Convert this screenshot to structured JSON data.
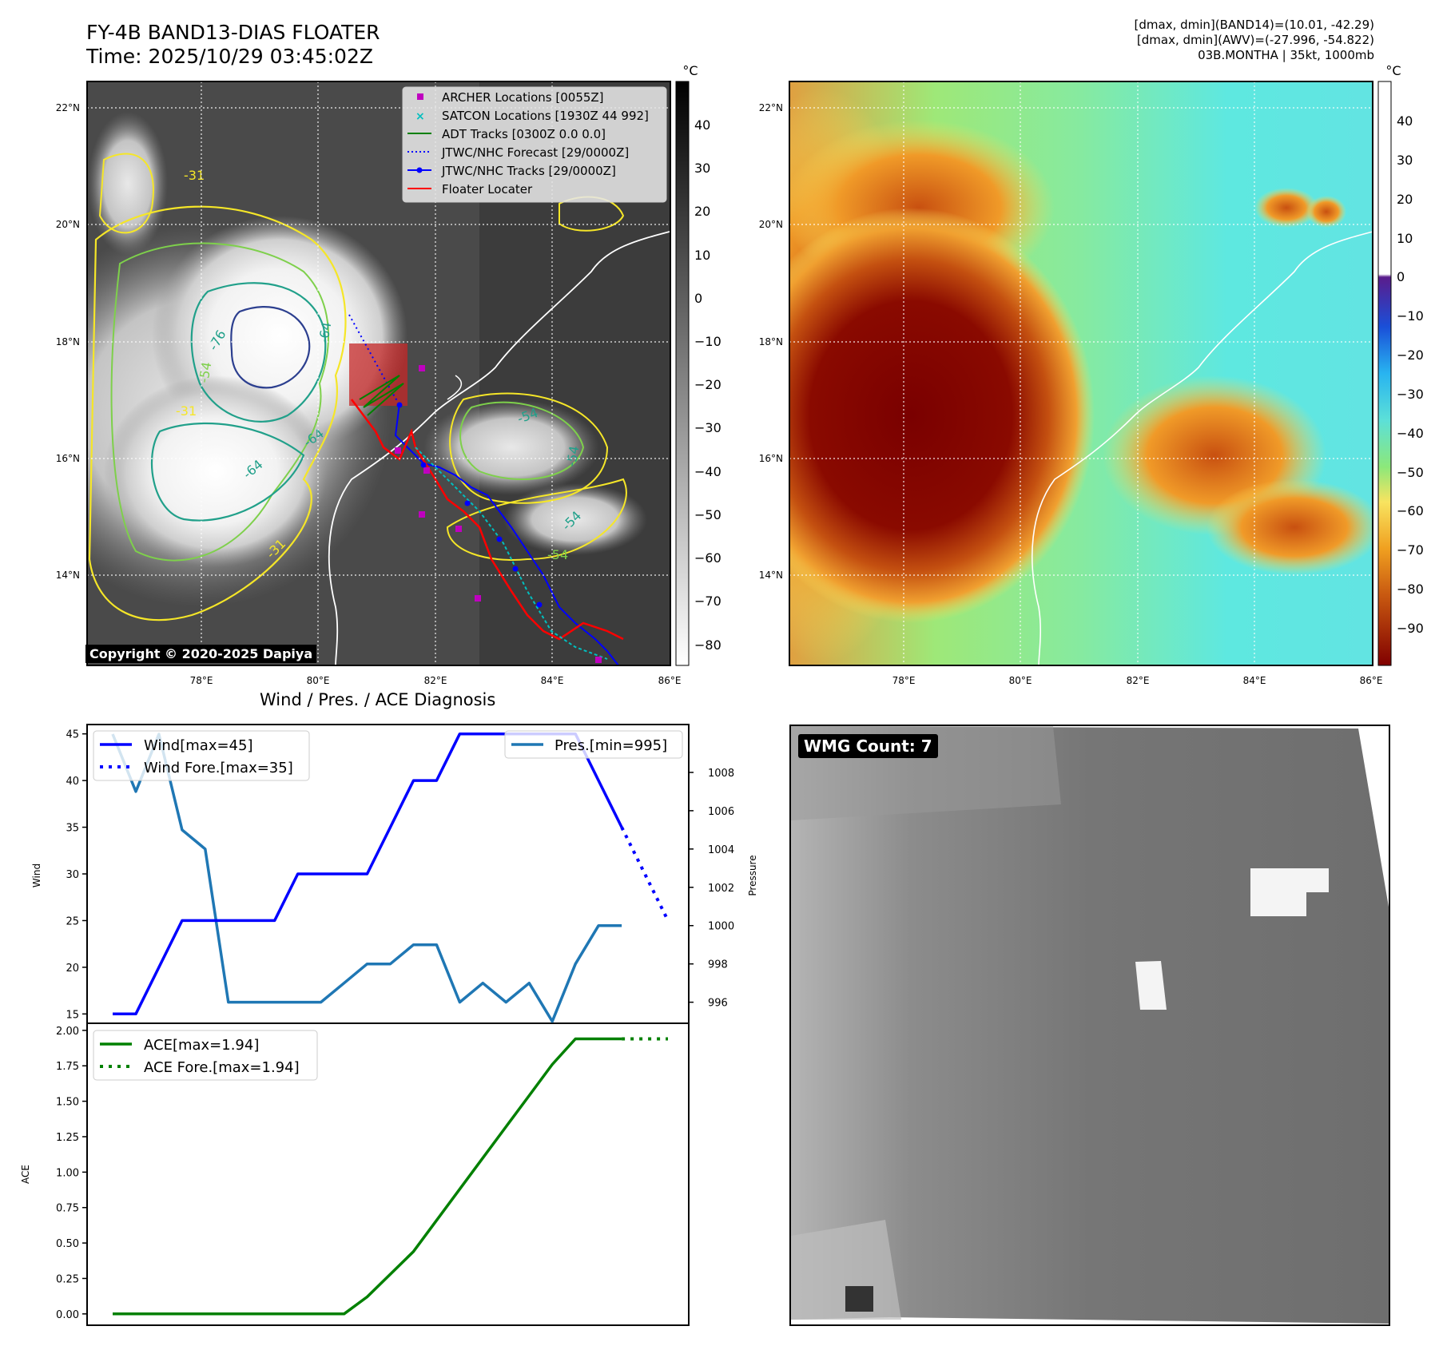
{
  "header": {
    "title_line1": "FY-4B BAND13-DIAS FLOATER",
    "title_line2": "Time: 2025/10/29 03:45:02Z",
    "info_line1": "[dmax, dmin](BAND14)=(10.01, -42.29)",
    "info_line2": "[dmax, dmin](AWV)=(-27.996, -54.822)",
    "info_line3": "03B.MONTHA | 35kt, 1000mb"
  },
  "map_ir": {
    "lon_ticks": [
      "78°E",
      "80°E",
      "82°E",
      "84°E",
      "86°E"
    ],
    "lat_ticks": [
      "22°N",
      "20°N",
      "18°N",
      "16°N",
      "14°N"
    ],
    "legend": [
      {
        "label": "ARCHER Locations [0055Z]",
        "color": "#bf00bf",
        "kind": "square"
      },
      {
        "label": "SATCON Locations [1930Z 44 992]",
        "color": "#00bfbf",
        "kind": "x"
      },
      {
        "label": "ADT Tracks [0300Z 0.0 0.0]",
        "color": "#008000",
        "kind": "line"
      },
      {
        "label": "JTWC/NHC Forecast [29/0000Z]",
        "color": "#0000ff",
        "kind": "dotted"
      },
      {
        "label": "JTWC/NHC Tracks [29/0000Z]",
        "color": "#0000ff",
        "kind": "line-dot"
      },
      {
        "label": "Floater Locater",
        "color": "#ff0000",
        "kind": "line"
      }
    ],
    "contour_labels": [
      "-31",
      "-76",
      "-64",
      "-64",
      "-64",
      "-54",
      "-54",
      "-54",
      "-54",
      "-31",
      "-54",
      "-31"
    ],
    "copyright": "Copyright © 2020-2025 Dapiya",
    "colorbar": {
      "unit": "°C",
      "ticks": [
        "40",
        "30",
        "20",
        "10",
        "0",
        "−10",
        "−20",
        "−30",
        "−40",
        "−50",
        "−60",
        "−70",
        "−80"
      ]
    }
  },
  "map_awv": {
    "lon_ticks": [
      "78°E",
      "80°E",
      "82°E",
      "84°E",
      "86°E"
    ],
    "lat_ticks": [
      "22°N",
      "20°N",
      "18°N",
      "16°N",
      "14°N"
    ],
    "colorbar": {
      "unit": "°C",
      "ticks": [
        "40",
        "30",
        "20",
        "10",
        "0",
        "−10",
        "−20",
        "−30",
        "−40",
        "−50",
        "−60",
        "−70",
        "−80",
        "−90"
      ]
    }
  },
  "diagnosis": {
    "title": "Wind / Pres. / ACE Diagnosis",
    "wind_ylabel": "Wind",
    "pres_ylabel": "Pressure",
    "ace_ylabel": "ACE",
    "wind_legend": "Wind[max=45]",
    "wind_fore_legend": "Wind Fore.[max=35]",
    "pres_legend": "Pres.[min=995]",
    "ace_legend": "ACE[max=1.94]",
    "ace_fore_legend": "ACE Fore.[max=1.94]",
    "colors": {
      "wind": "#0000ff",
      "pres": "#1f77b4",
      "ace": "#008000"
    }
  },
  "chart_data": [
    {
      "type": "line",
      "title": "Wind / Pres. / ACE Diagnosis",
      "ylabel": "Wind",
      "ylim": [
        14,
        46
      ],
      "xlim": [
        0,
        24
      ],
      "y_ticks": [
        15,
        20,
        25,
        30,
        35,
        40,
        45
      ],
      "series": [
        {
          "name": "Wind[max=45]",
          "style": "solid",
          "x": [
            0,
            1,
            2,
            3,
            4,
            5,
            6,
            7,
            8,
            9,
            10,
            11,
            12,
            13,
            14,
            15,
            16,
            17,
            18,
            19,
            20,
            21,
            22
          ],
          "values": [
            15,
            15,
            20,
            25,
            25,
            25,
            25,
            25,
            30,
            30,
            30,
            30,
            35,
            40,
            40,
            45,
            45,
            45,
            45,
            45,
            45,
            40,
            35
          ]
        },
        {
          "name": "Wind Fore.[max=35]",
          "style": "dotted",
          "x": [
            22,
            24
          ],
          "values": [
            35,
            25
          ]
        }
      ]
    },
    {
      "type": "line",
      "ylabel": "Pressure",
      "ylim": [
        994.9,
        1010.5
      ],
      "xlim": [
        0,
        24
      ],
      "y_ticks": [
        996,
        998,
        1000,
        1002,
        1004,
        1006,
        1008
      ],
      "series": [
        {
          "name": "Pres.[min=995]",
          "style": "solid",
          "x": [
            0,
            1,
            2,
            3,
            4,
            5,
            6,
            7,
            8,
            9,
            10,
            11,
            12,
            13,
            14,
            15,
            16,
            17,
            18,
            19,
            20,
            21,
            22
          ],
          "values": [
            1010,
            1007,
            1010,
            1005,
            1004,
            996,
            996,
            996,
            996,
            996,
            997,
            998,
            998,
            999,
            999,
            996,
            997,
            996,
            997,
            995,
            998,
            1000,
            1000
          ]
        }
      ]
    },
    {
      "type": "line",
      "ylabel": "ACE",
      "ylim": [
        -0.08,
        2.05
      ],
      "xlim": [
        0,
        24
      ],
      "y_ticks": [
        0.0,
        0.25,
        0.5,
        0.75,
        1.0,
        1.25,
        1.5,
        1.75,
        2.0
      ],
      "y_tick_labels": [
        "0.00",
        "0.25",
        "0.50",
        "0.75",
        "1.00",
        "1.25",
        "1.50",
        "1.75",
        "2.00"
      ],
      "series": [
        {
          "name": "ACE[max=1.94]",
          "style": "solid",
          "x": [
            0,
            1,
            2,
            3,
            4,
            5,
            6,
            7,
            8,
            9,
            10,
            11,
            12,
            13,
            14,
            15,
            16,
            17,
            18,
            19,
            20,
            21,
            22
          ],
          "values": [
            0,
            0,
            0,
            0,
            0,
            0,
            0,
            0,
            0,
            0,
            0,
            0.12,
            0.28,
            0.44,
            0.66,
            0.88,
            1.1,
            1.32,
            1.54,
            1.76,
            1.94,
            1.94,
            1.94
          ]
        },
        {
          "name": "ACE Fore.[max=1.94]",
          "style": "dotted",
          "x": [
            22,
            24
          ],
          "values": [
            1.94,
            1.94
          ]
        }
      ]
    }
  ],
  "wmg": {
    "label": "WMG Count: 7"
  }
}
